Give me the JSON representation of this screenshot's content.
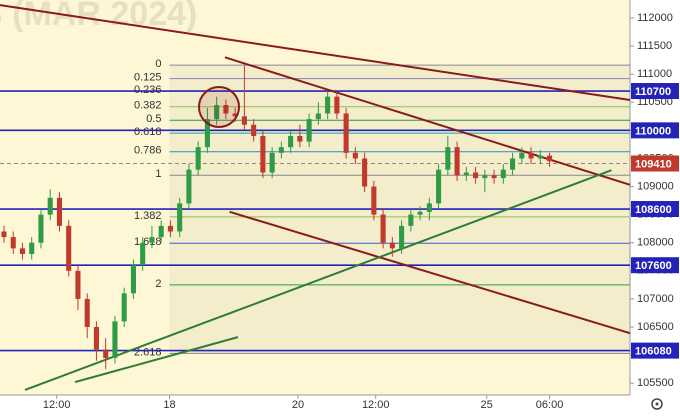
{
  "chart_data": {
    "type": "candlestick",
    "watermark": "S (MAR 2024)",
    "background": "#fdf7d6",
    "up_color": "#2e9b45",
    "down_color": "#c0392b",
    "x": [
      0,
      1,
      2,
      3,
      4,
      5,
      6,
      7,
      8,
      9,
      10,
      11,
      12,
      13,
      14,
      15,
      16,
      17,
      18,
      19,
      20,
      21,
      22,
      23,
      24,
      25,
      26,
      27,
      28,
      29,
      30,
      31,
      32,
      33,
      34,
      35,
      36,
      37,
      38,
      39,
      40,
      41,
      42,
      43,
      44,
      45,
      46,
      47,
      48,
      49,
      50,
      51,
      52,
      53,
      54,
      55,
      56,
      57,
      58,
      59
    ],
    "open": [
      108200,
      108100,
      107900,
      107800,
      108000,
      108500,
      108800,
      108300,
      107500,
      107000,
      106500,
      106100,
      105950,
      106600,
      107100,
      107600,
      108000,
      108100,
      108300,
      108200,
      108700,
      109300,
      109700,
      110200,
      110450,
      110300,
      110250,
      110100,
      109900,
      109250,
      109600,
      109700,
      109900,
      109800,
      110200,
      110300,
      110600,
      110300,
      109600,
      109500,
      109000,
      108500,
      108000,
      107900,
      108300,
      108500,
      108550,
      108700,
      109300,
      109700,
      109200,
      109250,
      109150,
      109200,
      109150,
      109300,
      109500,
      109600,
      109500,
      109550
    ],
    "high": [
      108300,
      108200,
      108000,
      108100,
      108600,
      108950,
      108900,
      108400,
      107600,
      107100,
      106600,
      106300,
      106700,
      107200,
      107700,
      108100,
      108300,
      108400,
      108400,
      108800,
      109400,
      109800,
      110400,
      110600,
      110550,
      110400,
      111150,
      110200,
      110000,
      109700,
      109800,
      110000,
      110100,
      110300,
      110500,
      110700,
      110700,
      110400,
      109700,
      109600,
      109100,
      108600,
      108100,
      108400,
      108600,
      108650,
      108800,
      109400,
      109900,
      109800,
      109350,
      109350,
      109300,
      109300,
      109400,
      109600,
      109700,
      109700,
      109650,
      109600
    ],
    "low": [
      108000,
      107800,
      107700,
      107700,
      107900,
      108400,
      108200,
      107400,
      106800,
      106300,
      105900,
      105750,
      105850,
      106500,
      107000,
      107500,
      107900,
      108000,
      108100,
      108100,
      108600,
      109200,
      109600,
      110100,
      110200,
      110150,
      110000,
      109800,
      109150,
      109150,
      109500,
      109600,
      109700,
      109700,
      110100,
      110200,
      110200,
      109500,
      109400,
      108900,
      108400,
      107900,
      107750,
      107800,
      108200,
      108400,
      108400,
      108600,
      109200,
      109100,
      109100,
      109050,
      108900,
      109050,
      109050,
      109200,
      109400,
      109400,
      109400,
      109350
    ],
    "close": [
      108100,
      107900,
      107800,
      108000,
      108500,
      108800,
      108300,
      107500,
      107000,
      106500,
      106100,
      105950,
      106600,
      107100,
      107600,
      108000,
      108100,
      108300,
      108200,
      108700,
      109300,
      109700,
      110200,
      110450,
      110300,
      110250,
      110100,
      109900,
      109250,
      109600,
      109700,
      109900,
      109800,
      110200,
      110300,
      110600,
      110300,
      109600,
      109500,
      109000,
      108500,
      108000,
      107900,
      108300,
      108500,
      108550,
      108700,
      109300,
      109700,
      109200,
      109250,
      109150,
      109200,
      109150,
      109300,
      109500,
      109600,
      109500,
      109550,
      109450
    ],
    "xlim": [
      -0.43,
      67.7
    ],
    "xticks": [
      {
        "value": 5.7,
        "label": "12:00"
      },
      {
        "value": 17.9,
        "label": "18"
      },
      {
        "value": 31.8,
        "label": "20"
      },
      {
        "value": 40.2,
        "label": "12:00"
      },
      {
        "value": 52.2,
        "label": "25"
      },
      {
        "value": 59.0,
        "label": "06:00"
      }
    ],
    "ylim": [
      105290,
      112320
    ],
    "yticks": [
      105500,
      106000,
      106500,
      107000,
      107500,
      108000,
      108500,
      109000,
      109500,
      110000,
      110500,
      111000,
      111500,
      112000
    ],
    "levels": [
      110700,
      110000,
      108600,
      107600,
      106080
    ],
    "level_color": "#2323b8",
    "last_price": 109410,
    "last_color": "#c0392b",
    "fib_start": 17.9,
    "fib_levels": [
      {
        "level": 0,
        "value": 111160,
        "color": "#888888"
      },
      {
        "level": 0.125,
        "value": 110920,
        "color": "#8a7fc0"
      },
      {
        "level": 0.236,
        "value": 110700,
        "color": "#d24040"
      },
      {
        "level": 0.382,
        "value": 110420,
        "color": "#8bc34a"
      },
      {
        "level": 0.5,
        "value": 110180,
        "color": "#2e9b45"
      },
      {
        "level": 0.618,
        "value": 109950,
        "color": "#17a2a2"
      },
      {
        "level": 0.786,
        "value": 109620,
        "color": "#2b8fb8"
      },
      {
        "level": 1,
        "value": 109200,
        "color": "#888888"
      },
      {
        "level": 1.382,
        "value": 108460,
        "color": "#8bc34a"
      },
      {
        "level": 1.618,
        "value": 107990,
        "color": "#3a5fcd"
      },
      {
        "level": 2,
        "value": 107250,
        "color": "#2e9b45"
      },
      {
        "level": 2.618,
        "value": 106030,
        "color": "#888888"
      }
    ],
    "trendlines": [
      {
        "x": [
          -0.43,
          67.7
        ],
        "y": [
          112230,
          110540
        ],
        "color": "#8b1a1a"
      },
      {
        "x": [
          23.9,
          67.7
        ],
        "y": [
          111300,
          109030
        ],
        "color": "#8b1a1a"
      },
      {
        "x": [
          24.4,
          67.7
        ],
        "y": [
          108550,
          106390
        ],
        "color": "#8b1a1a"
      },
      {
        "x": [
          2.27,
          65.7
        ],
        "y": [
          105380,
          109290
        ],
        "color": "#2e7d32"
      },
      {
        "x": [
          7.68,
          25.3
        ],
        "y": [
          105520,
          106320
        ],
        "color": "#2e7d32"
      }
    ]
  }
}
